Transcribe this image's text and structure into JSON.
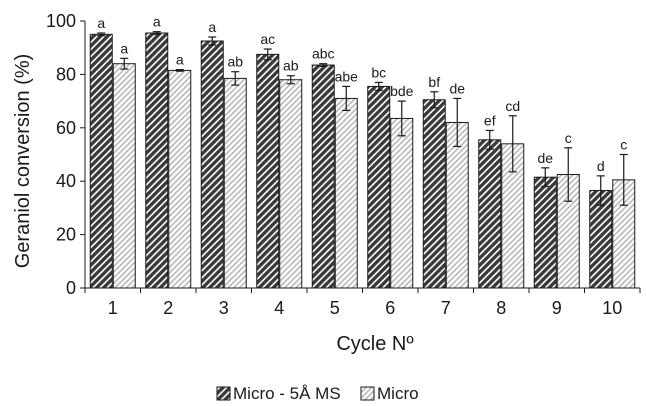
{
  "chart_data": {
    "type": "bar",
    "xlabel": "Cycle Nº",
    "ylabel": "Geraniol conversion (%)",
    "ylim": [
      0,
      100
    ],
    "yticks": [
      0,
      20,
      40,
      60,
      80,
      100
    ],
    "grid": false,
    "legend_position": "bottom",
    "categories": [
      "1",
      "2",
      "3",
      "4",
      "5",
      "6",
      "7",
      "8",
      "9",
      "10"
    ],
    "series": [
      {
        "name": "Micro - 5Å MS",
        "pattern": "dark-hatch",
        "values": [
          95.0,
          95.5,
          92.5,
          87.5,
          83.5,
          75.5,
          70.5,
          55.5,
          41.5,
          36.5
        ],
        "errors": [
          0.5,
          0.5,
          1.5,
          2.0,
          0.5,
          1.5,
          3.0,
          3.5,
          3.5,
          5.5
        ],
        "letters": [
          "a",
          "a",
          "a",
          "ac",
          "abc",
          "bc",
          "bf",
          "ef",
          "de",
          "d"
        ]
      },
      {
        "name": "Micro",
        "pattern": "light-hatch",
        "values": [
          84.0,
          81.5,
          78.5,
          78.0,
          71.0,
          63.5,
          62.0,
          54.0,
          42.5,
          40.5
        ],
        "errors": [
          2.0,
          0.3,
          2.5,
          1.5,
          4.5,
          6.5,
          9.0,
          10.5,
          10.0,
          9.5
        ],
        "letters": [
          "a",
          "a",
          "ab",
          "ab",
          "abe",
          "bde",
          "de",
          "cd",
          "c",
          "c"
        ]
      }
    ]
  }
}
